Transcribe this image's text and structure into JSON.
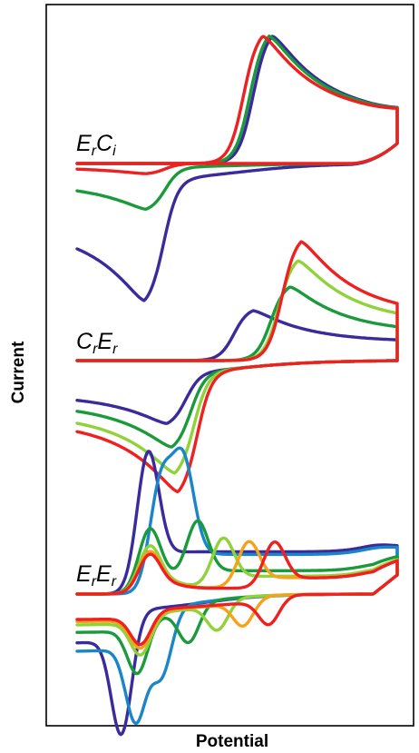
{
  "chart_data": {
    "type": "line",
    "title": "",
    "xlabel": "Potential",
    "ylabel": "Current",
    "grid": false,
    "legend": "none",
    "x_ticks_shown": false,
    "y_ticks_shown": false,
    "panels": [
      {
        "label": {
          "parts": [
            {
              "t": "E",
              "sub": false
            },
            {
              "t": "r",
              "sub": true
            },
            {
              "t": "C",
              "sub": false
            },
            {
              "t": "i",
              "sub": true
            }
          ]
        },
        "curves": [
          {
            "color": "#3a2a9c",
            "E0": -0.28,
            "scale": 1.0,
            "width": 0.09,
            "xpeak_fwd": 0.22,
            "xpeak_rev": -0.58,
            "base_fwd": 0.0,
            "base_rev": -0.13,
            "rev_frac": 0.95
          },
          {
            "color": "#1a9a3a",
            "E0": -0.28,
            "scale": 1.0,
            "width": 0.09,
            "xpeak_fwd": 0.2,
            "xpeak_rev": -0.57,
            "base_fwd": 0.0,
            "base_rev": -0.03,
            "rev_frac": 0.33
          },
          {
            "color": "#ee2020",
            "E0": -0.28,
            "scale": 1.0,
            "width": 0.09,
            "xpeak_fwd": 0.16,
            "xpeak_rev": -0.57,
            "base_fwd": 0.0,
            "base_rev": 0.0,
            "rev_frac": 0.08
          }
        ]
      },
      {
        "label": {
          "parts": [
            {
              "t": "C",
              "sub": false
            },
            {
              "t": "r",
              "sub": true
            },
            {
              "t": "E",
              "sub": false
            },
            {
              "t": "r",
              "sub": true
            }
          ]
        },
        "curves": [
          {
            "color": "#3a2a9c",
            "scale": 0.42,
            "xpeak_fwd": 0.1,
            "xpeak_rev": -0.44,
            "base_fwd": 0.0,
            "base_rev": -0.12,
            "rev_frac": 1.0
          },
          {
            "color": "#1a9a3a",
            "scale": 0.62,
            "xpeak_fwd": 0.33,
            "xpeak_rev": -0.41,
            "base_fwd": 0.0,
            "base_rev": -0.12,
            "rev_frac": 1.0
          },
          {
            "color": "#8fd23a",
            "scale": 0.84,
            "xpeak_fwd": 0.38,
            "xpeak_rev": -0.39,
            "base_fwd": 0.0,
            "base_rev": -0.12,
            "rev_frac": 1.0
          },
          {
            "color": "#ee2020",
            "scale": 1.0,
            "xpeak_fwd": 0.4,
            "xpeak_rev": -0.37,
            "base_fwd": 0.0,
            "base_rev": -0.12,
            "rev_frac": 1.0
          }
        ]
      },
      {
        "label": {
          "parts": [
            {
              "t": "E",
              "sub": false
            },
            {
              "t": "r",
              "sub": true
            },
            {
              "t": "E",
              "sub": false
            },
            {
              "t": "r",
              "sub": true
            }
          ]
        },
        "curves": [
          {
            "color": "#3a2a9c",
            "sep": 0.0,
            "peak1": 1.0,
            "peak2": 1.0,
            "xpeak_fwd": -0.56,
            "xpeak_rev": -0.72,
            "base_rev": -0.22
          },
          {
            "color": "#1a86c8",
            "sep": 0.14,
            "peak1": 0.78,
            "peak2": 0.78,
            "xpeak_fwd": -0.48,
            "xpeak_rev": -0.63,
            "base_rev": -0.2
          },
          {
            "color": "#1a9a3a",
            "sep": 0.3,
            "peak1": 0.46,
            "peak2": 0.46,
            "xpeak_fwd": -0.55,
            "xpeak_rev": -0.62,
            "base_rev": -0.18
          },
          {
            "color": "#8fd23a",
            "sep": 0.46,
            "peak1": 0.34,
            "peak2": 0.36,
            "xpeak_fwd": -0.55,
            "xpeak_rev": -0.6,
            "base_rev": -0.16
          },
          {
            "color": "#f5a21a",
            "sep": 0.62,
            "peak1": 0.3,
            "peak2": 0.34,
            "xpeak_fwd": -0.55,
            "xpeak_rev": -0.6,
            "base_rev": -0.14
          },
          {
            "color": "#ee2020",
            "sep": 0.78,
            "peak1": 0.28,
            "peak2": 0.34,
            "xpeak_fwd": -0.55,
            "xpeak_rev": -0.6,
            "base_rev": -0.12
          }
        ]
      }
    ]
  }
}
